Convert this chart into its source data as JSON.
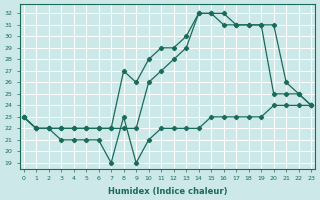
{
  "xlabel": "Humidex (Indice chaleur)",
  "bg_color": "#cce8e8",
  "line_color": "#1a6b5a",
  "grid_color": "#ffffff",
  "ylim": [
    18.5,
    32.8
  ],
  "xlim": [
    -0.3,
    23.3
  ],
  "yticks": [
    19,
    20,
    21,
    22,
    23,
    24,
    25,
    26,
    27,
    28,
    29,
    30,
    31,
    32
  ],
  "xticks": [
    0,
    1,
    2,
    3,
    4,
    5,
    6,
    7,
    8,
    9,
    10,
    11,
    12,
    13,
    14,
    15,
    16,
    17,
    18,
    19,
    20,
    21,
    22,
    23
  ],
  "line_top_x": [
    0,
    1,
    2,
    3,
    4,
    5,
    6,
    7,
    8,
    9,
    10,
    11,
    12,
    13,
    14,
    15,
    16,
    17,
    18,
    19,
    20,
    21,
    22,
    23
  ],
  "line_top_y": [
    23,
    22,
    22,
    22,
    22,
    22,
    22,
    22,
    27,
    26,
    28,
    29,
    29,
    30,
    32,
    32,
    32,
    31,
    31,
    31,
    31,
    26,
    25,
    24
  ],
  "line_mid_x": [
    0,
    1,
    2,
    3,
    4,
    5,
    6,
    7,
    8,
    9,
    10,
    11,
    12,
    13,
    14,
    15,
    16,
    17,
    18,
    19,
    20,
    21,
    22,
    23
  ],
  "line_mid_y": [
    23,
    22,
    22,
    22,
    22,
    22,
    22,
    22,
    22,
    22,
    26,
    27,
    28,
    29,
    32,
    32,
    31,
    31,
    31,
    31,
    25,
    25,
    25,
    24
  ],
  "line_bot_x": [
    0,
    1,
    2,
    3,
    4,
    5,
    6,
    7,
    8,
    9,
    10,
    11,
    12,
    13,
    14,
    15,
    16,
    17,
    18,
    19,
    20,
    21,
    22,
    23
  ],
  "line_bot_y": [
    23,
    22,
    22,
    21,
    21,
    21,
    21,
    19,
    23,
    19,
    21,
    22,
    22,
    22,
    22,
    23,
    23,
    23,
    23,
    23,
    24,
    24,
    24,
    24
  ]
}
